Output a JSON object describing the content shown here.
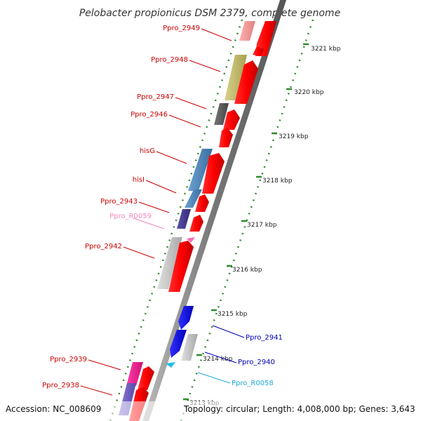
{
  "title": "Pelobacter propionicus DSM 2379, complete genome",
  "footer": {
    "accession": "Accession: NC_008609",
    "topology": "Topology: circular; Length: 4,008,000 bp; Genes: 3,643"
  },
  "ticks": [
    {
      "label": "3221 kbp"
    },
    {
      "label": "3220 kbp"
    },
    {
      "label": "3219 kbp"
    },
    {
      "label": "3218 kbp"
    },
    {
      "label": "3217 kbp"
    },
    {
      "label": "3216 kbp"
    },
    {
      "label": "3215 kbp"
    },
    {
      "label": "3214 kbp"
    },
    {
      "label": "3213 kbp"
    }
  ],
  "genes": [
    {
      "name": "Ppro_2949",
      "color": "#cc0000",
      "feature_color": "#f08080"
    },
    {
      "name": "Ppro_2948",
      "color": "#cc0000",
      "feature_color": "#bdb76b"
    },
    {
      "name": "Ppro_2947",
      "color": "#cc0000",
      "feature_color": "#555555"
    },
    {
      "name": "Ppro_2946",
      "color": "#cc0000",
      "feature_color": "#ff0000"
    },
    {
      "name": "hisG",
      "color": "#cc0000",
      "feature_color": "#4682b4"
    },
    {
      "name": "hisI",
      "color": "#cc0000",
      "feature_color": "#4682b4"
    },
    {
      "name": "Ppro_2943",
      "color": "#cc0000",
      "feature_color": "#483d8b"
    },
    {
      "name": "Ppro_R0059",
      "color": "#ee88bb",
      "feature_color": "#ff69b4"
    },
    {
      "name": "Ppro_2942",
      "color": "#cc0000",
      "feature_color": "#c0c0c0"
    },
    {
      "name": "Ppro_2941",
      "color": "#0000bb",
      "feature_color": "#0000ff"
    },
    {
      "name": "Ppro_2940",
      "color": "#0000bb",
      "feature_color": "#0000ff"
    },
    {
      "name": "Ppro_R0058",
      "color": "#22aadd",
      "feature_color": "#22bbee"
    },
    {
      "name": "Ppro_2939",
      "color": "#cc0000",
      "feature_color": "#ff1493"
    },
    {
      "name": "Ppro_2938",
      "color": "#cc0000",
      "feature_color": "#6a5acd"
    }
  ]
}
